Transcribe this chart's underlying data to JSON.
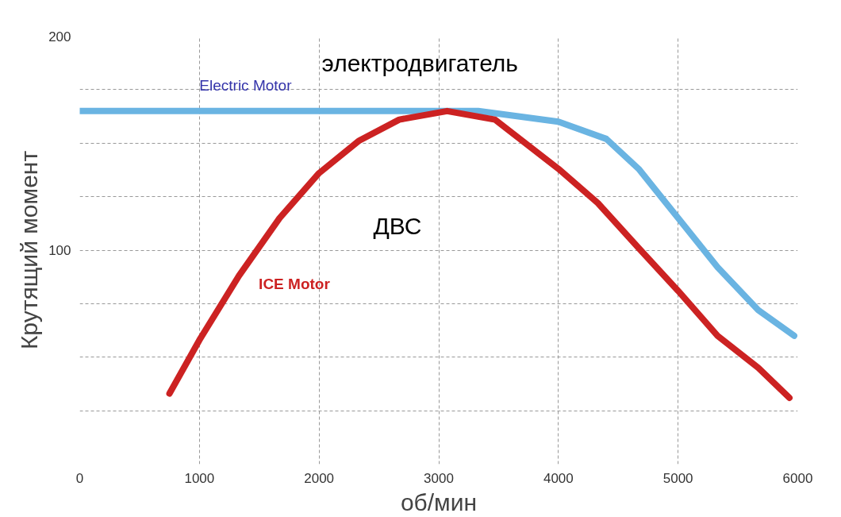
{
  "chart_data": {
    "type": "line",
    "xlabel": "об/мин",
    "ylabel": "Крутящий момент",
    "xlim": [
      0,
      6000
    ],
    "ylim": [
      0,
      200
    ],
    "xticks": [
      0,
      1000,
      2000,
      3000,
      4000,
      5000,
      6000
    ],
    "yticks": [
      {
        "value": 25,
        "label": null
      },
      {
        "value": 50,
        "label": null
      },
      {
        "value": 75,
        "label": null
      },
      100,
      {
        "value": 125,
        "label": null
      },
      {
        "value": 150,
        "label": null
      },
      {
        "value": 175,
        "label": null
      },
      200
    ],
    "grid": true,
    "line_style": "solid",
    "marker": "none",
    "series": [
      {
        "name": "Electric Motor",
        "color": "#6ab4e2",
        "x": [
          0,
          1000,
          2000,
          3000,
          3330,
          4000,
          4400,
          4670,
          5000,
          5330,
          5670,
          5970
        ],
        "values": [
          165,
          165,
          165,
          165,
          165,
          160,
          152,
          138,
          115,
          92,
          72,
          60
        ]
      },
      {
        "name": "ICE Motor",
        "color": "#cc2222",
        "x": [
          750,
          1000,
          1330,
          1670,
          2000,
          2330,
          2670,
          3070,
          3470,
          4000,
          4330,
          4670,
          5000,
          5330,
          5670,
          5930
        ],
        "values": [
          33,
          58,
          88,
          115,
          136,
          151,
          161,
          165,
          161,
          138,
          122,
          101,
          81,
          60,
          45,
          31
        ]
      }
    ],
    "annotations": [
      "электродвигатель",
      "ДВС"
    ]
  }
}
